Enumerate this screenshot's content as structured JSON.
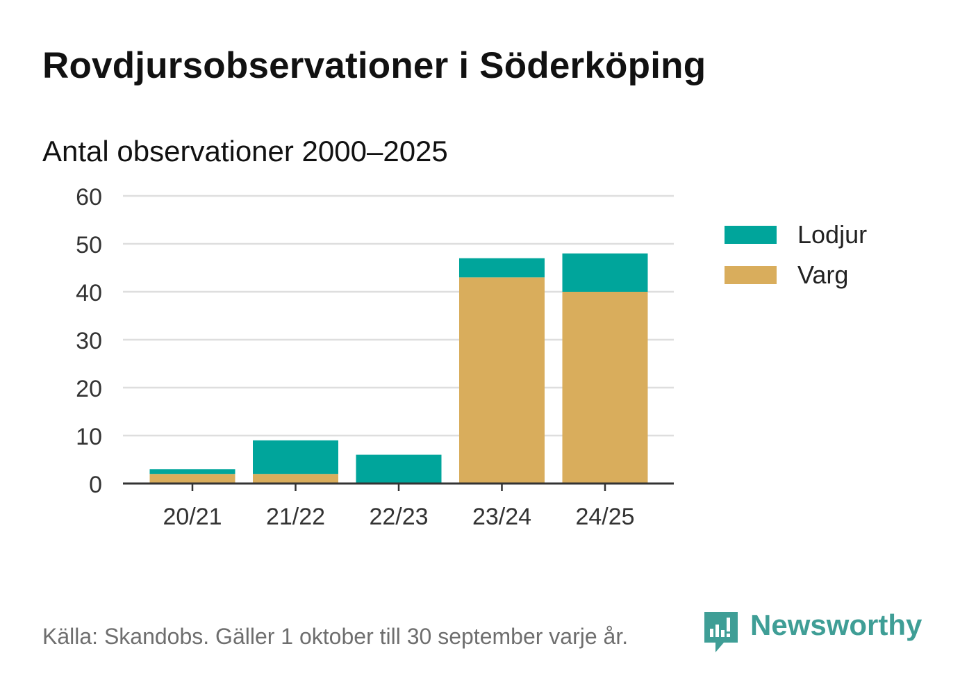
{
  "chart_data": {
    "type": "bar",
    "stacked": true,
    "title": "Rovdjursobservationer i Söderköping",
    "subtitle": "Antal observationer 2000–2025",
    "categories": [
      "20/21",
      "21/22",
      "22/23",
      "23/24",
      "24/25"
    ],
    "series": [
      {
        "name": "Varg",
        "color": "#d9ad5c",
        "values": [
          2,
          2,
          0,
          43,
          40
        ]
      },
      {
        "name": "Lodjur",
        "color": "#00a59b",
        "values": [
          1,
          7,
          6,
          4,
          8
        ]
      }
    ],
    "legend_order": [
      "Lodjur",
      "Varg"
    ],
    "legend_position": "right",
    "ylim": [
      0,
      60
    ],
    "yticks": [
      0,
      10,
      20,
      30,
      40,
      50,
      60
    ],
    "ytick_labels": [
      "0",
      "10",
      "20",
      "30",
      "40",
      "50",
      "60"
    ],
    "grid": true,
    "xlabel": "",
    "ylabel": ""
  },
  "footer": {
    "source": "Källa: Skandobs. Gäller 1 oktober till 30 september varje år.",
    "brand": "Newsworthy",
    "brand_color": "#3f9e96"
  }
}
